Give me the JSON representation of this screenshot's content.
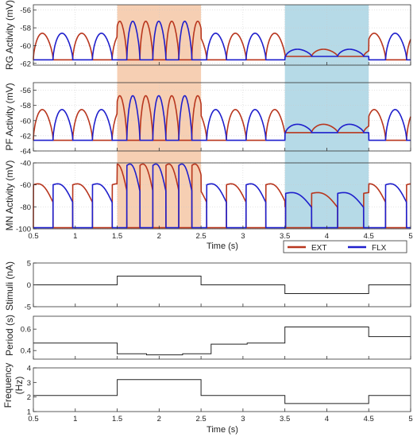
{
  "chart_data": [
    {
      "type": "line",
      "panel": "rg",
      "ylabel": "RG Activity (mV)",
      "ylim": [
        -62.2,
        -55.4
      ],
      "yticks": [
        -56,
        -58,
        -60,
        -62
      ],
      "xlim": [
        0.5,
        5
      ],
      "xticks": [
        0.5,
        1,
        1.5,
        2,
        2.5,
        3,
        3.5,
        4,
        4.5,
        5
      ],
      "grid": true,
      "series": [
        {
          "name": "EXT",
          "color": "#b8361e",
          "values": "oscillation trace: phases near -61.5 to -58 mV, amplitude increases 1.5–2.5 s to ~-56 mV, reduced ~-60.5 to -59 mV during 3.5–4.5 s"
        },
        {
          "name": "FLX",
          "color": "#1f1fcc",
          "values": "anti-phase oscillation trace with same envelope"
        }
      ]
    },
    {
      "type": "line",
      "panel": "pf",
      "ylabel": "PF Activity (mV)",
      "ylim": [
        -64,
        -55
      ],
      "yticks": [
        -56,
        -58,
        -60,
        -62,
        -64
      ],
      "xlim": [
        0.5,
        5
      ],
      "xticks": [
        0.5,
        1,
        1.5,
        2,
        2.5,
        3,
        3.5,
        4,
        4.5,
        5
      ],
      "grid": true,
      "series": [
        {
          "name": "EXT",
          "color": "#b8361e"
        },
        {
          "name": "FLX",
          "color": "#1f1fcc"
        }
      ]
    },
    {
      "type": "line",
      "panel": "mn",
      "ylabel": "MN Activity (mV)",
      "xlabel": "Time (s)",
      "ylim": [
        -100,
        -40
      ],
      "yticks": [
        -40,
        -60,
        -80,
        -100
      ],
      "xlim": [
        0.5,
        5
      ],
      "xticks": [
        0.5,
        1,
        1.5,
        2,
        2.5,
        3,
        3.5,
        4,
        4.5,
        5
      ],
      "grid": true,
      "legend": {
        "placement": "below-right",
        "entries": [
          "EXT",
          "FLX"
        ]
      },
      "series": [
        {
          "name": "EXT",
          "color": "#b8361e"
        },
        {
          "name": "FLX",
          "color": "#1f1fcc"
        }
      ]
    },
    {
      "type": "line",
      "panel": "stimuli",
      "ylabel": "Stimuli (nA)",
      "ylim": [
        -5,
        5
      ],
      "yticks": [
        5,
        0,
        -5
      ],
      "xlim": [
        0.5,
        5
      ],
      "step": true,
      "x": [
        0.5,
        1.5,
        1.5,
        2.5,
        2.5,
        3.5,
        3.5,
        4.5,
        4.5,
        5
      ],
      "y": [
        0,
        0,
        2,
        2,
        0,
        0,
        -2,
        -2,
        0,
        0
      ]
    },
    {
      "type": "line",
      "panel": "period",
      "ylabel": "Period (s)",
      "ylim": [
        0.32,
        0.72
      ],
      "yticks": [
        0.6,
        0.4
      ],
      "xlim": [
        0.5,
        5
      ],
      "step": true,
      "x": [
        0.5,
        1.5,
        1.5,
        1.85,
        1.85,
        2.28,
        2.28,
        2.62,
        2.62,
        3.05,
        3.05,
        3.5,
        3.5,
        4.22,
        4.22,
        4.5,
        4.5,
        5
      ],
      "y": [
        0.47,
        0.47,
        0.37,
        0.37,
        0.36,
        0.36,
        0.37,
        0.37,
        0.46,
        0.46,
        0.47,
        0.47,
        0.62,
        0.62,
        0.62,
        0.62,
        0.53,
        0.53
      ]
    },
    {
      "type": "line",
      "panel": "frequency",
      "ylabel": "Frequency (Hz)",
      "xlabel": "Time (s)",
      "ylim": [
        1,
        4
      ],
      "yticks": [
        4,
        3,
        2,
        1
      ],
      "xlim": [
        0.5,
        5
      ],
      "xticks": [
        0.5,
        1,
        1.5,
        2,
        2.5,
        3,
        3.5,
        4,
        4.5,
        5
      ],
      "step": true,
      "x": [
        0.5,
        1.5,
        1.5,
        2.5,
        2.5,
        3.5,
        3.5,
        4.5,
        4.5,
        5
      ],
      "y": [
        2.1,
        2.1,
        3.2,
        3.2,
        2.1,
        2.1,
        1.55,
        1.55,
        2.1,
        2.1
      ]
    }
  ],
  "labels": {
    "rg_ylabel": "RG Activity (mV)",
    "pf_ylabel": "PF Activity (mV)",
    "mn_ylabel": "MN Activity (mV)",
    "time_label_top": "Time (s)",
    "stim_ylabel": "Stimuli (nA)",
    "period_ylabel": "Period (s)",
    "freq_ylabel_1": "Frequency",
    "freq_ylabel_2": "(Hz)",
    "time_label_bottom": "Time (s)"
  },
  "legend": {
    "ext_label": "EXT",
    "flx_label": "FLX",
    "ext_color": "#b8361e",
    "flx_color": "#1f1fcc"
  },
  "highlights": {
    "increase_color": "#f4c7a6",
    "decrease_color": "#a9d3e3",
    "increase_range": [
      1.5,
      2.5
    ],
    "decrease_range": [
      3.5,
      4.5
    ]
  }
}
